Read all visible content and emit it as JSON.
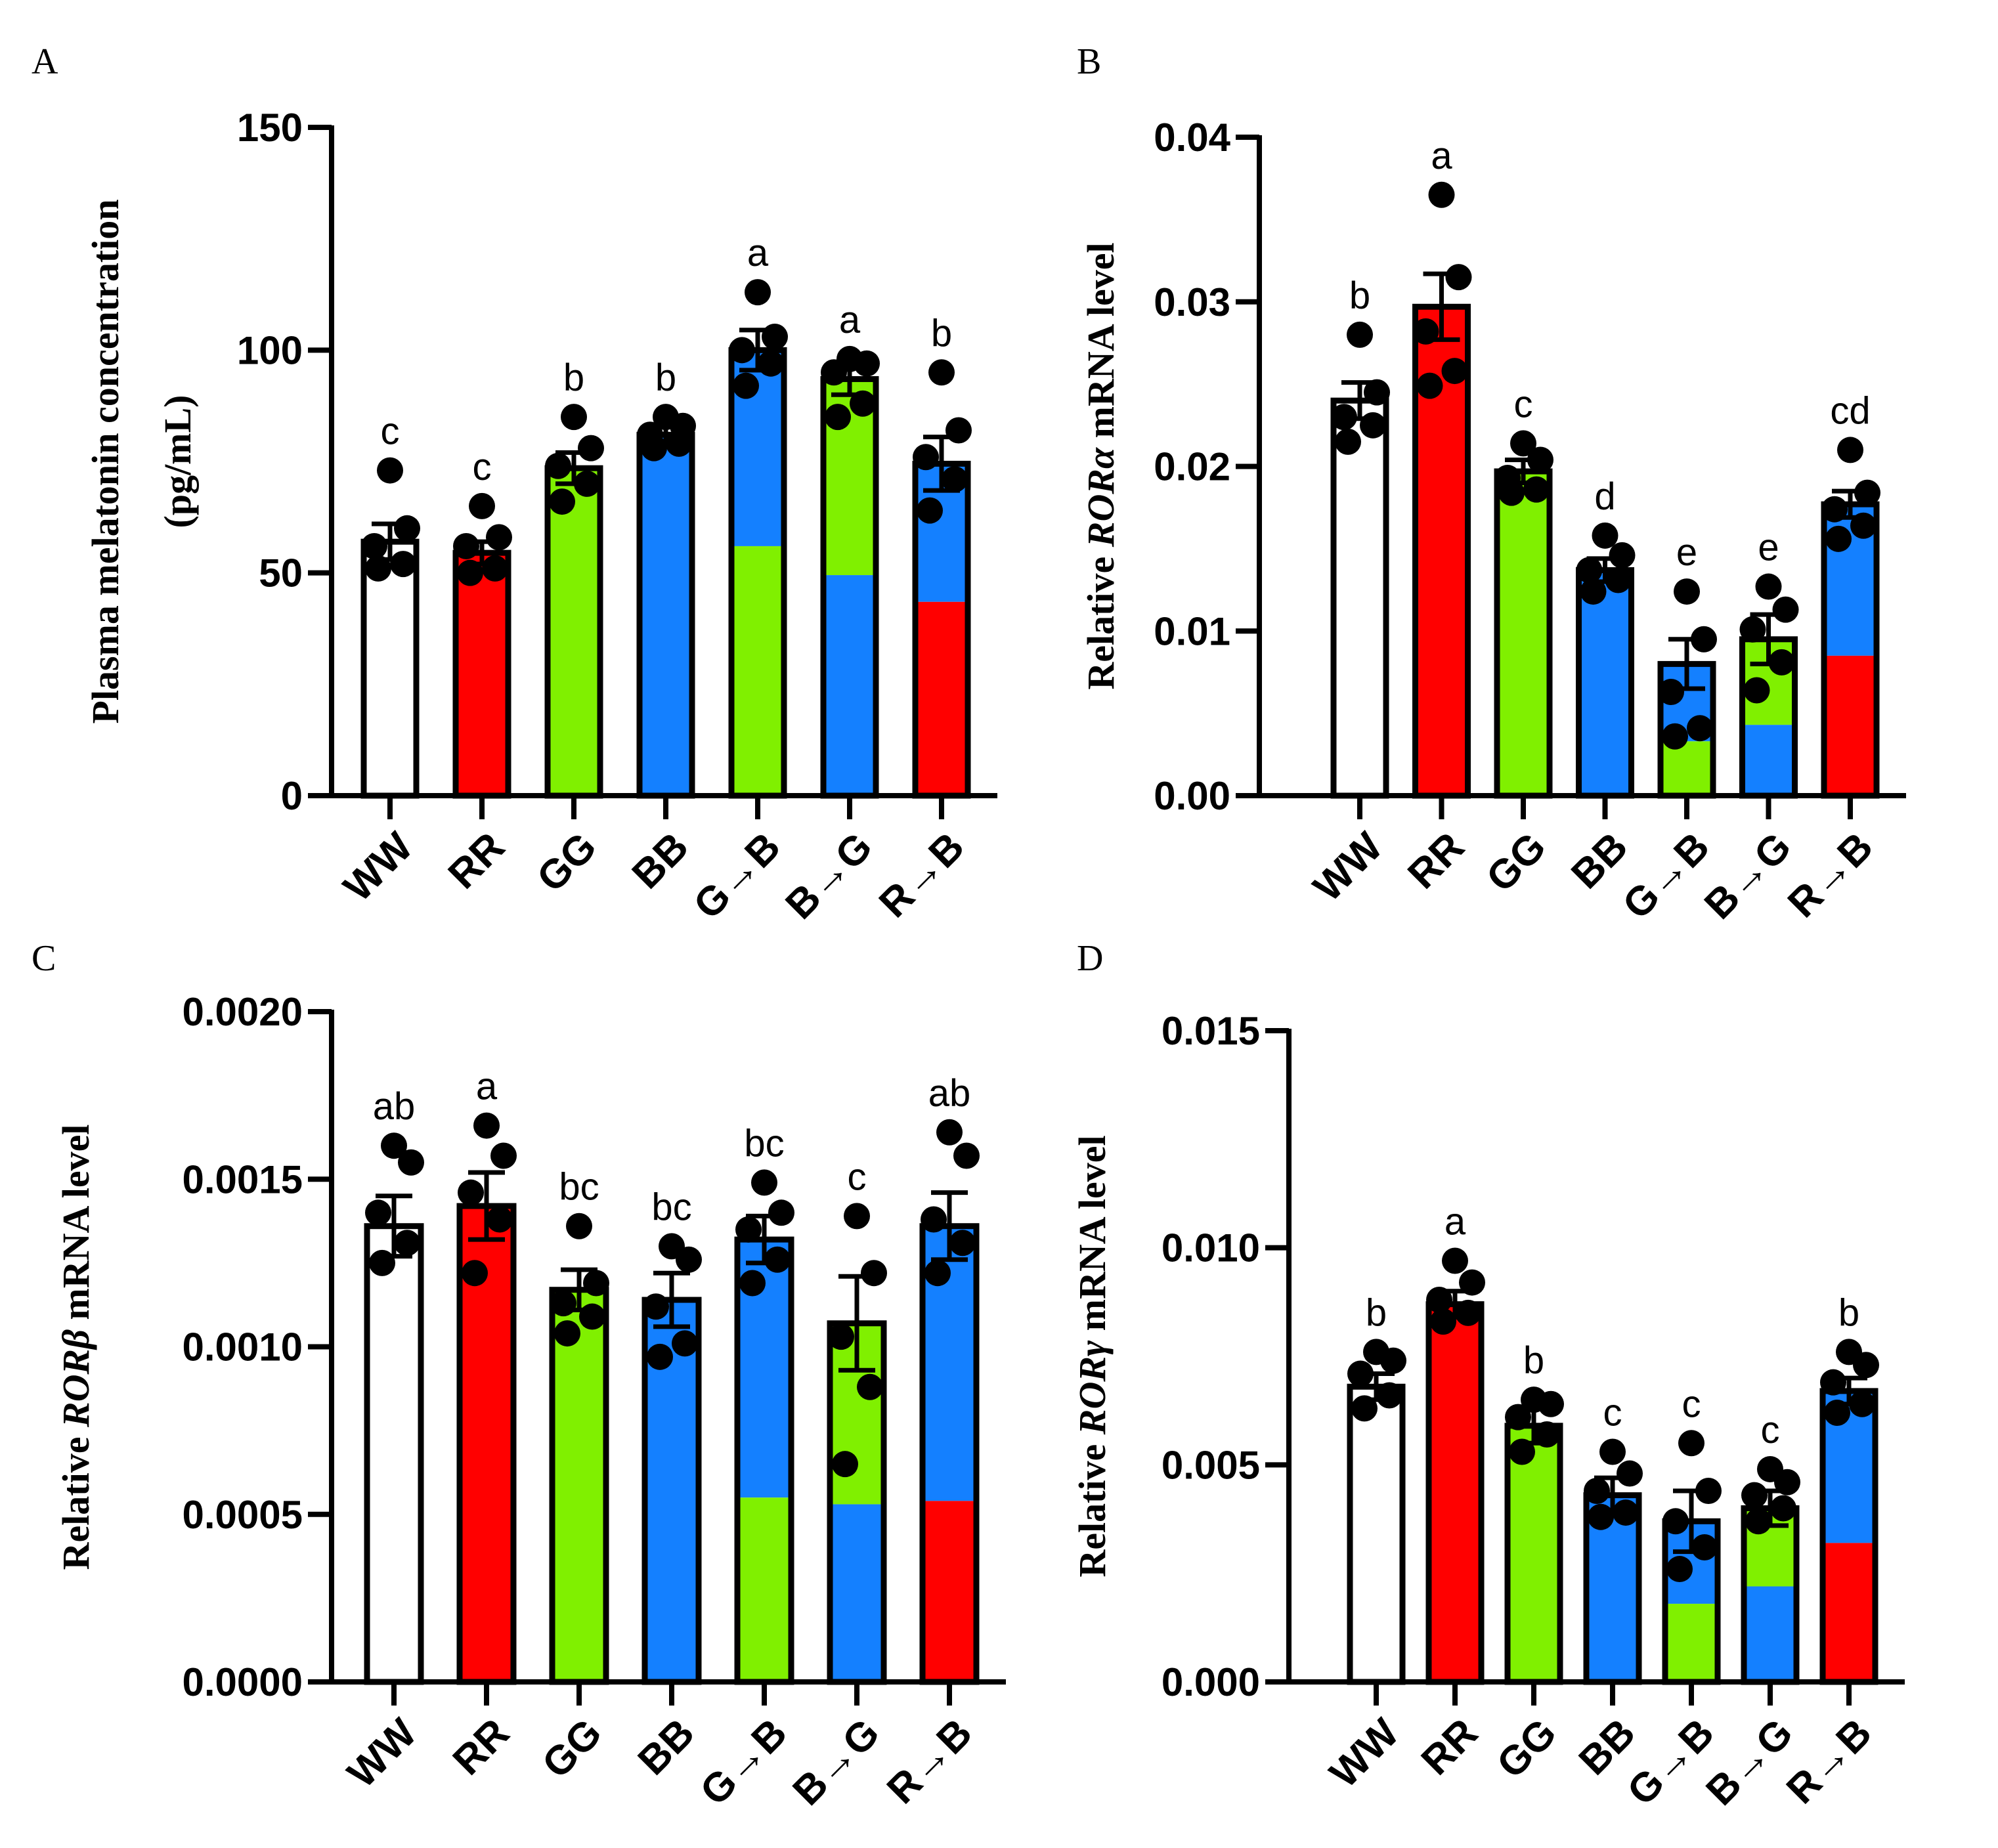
{
  "colors": {
    "W": "#ffffff",
    "R": "#ff0000",
    "G": "#80f000",
    "B": "#1480ff",
    "ink": "#000000"
  },
  "chart_data": [
    {
      "panel": "A",
      "type": "bar",
      "ylabel": "Plasma melatonin concentration",
      "ylabel_line2": "(pg/mL)",
      "categories": [
        "WW",
        "RR",
        "GG",
        "BB",
        "G→B",
        "B→G",
        "R→B"
      ],
      "ylim": [
        0,
        150
      ],
      "yticks": [
        "0",
        "50",
        "100",
        "150"
      ],
      "ytick_values": [
        0,
        50,
        100,
        150
      ],
      "values": [
        57,
        54.5,
        73.5,
        81,
        100,
        93.5,
        74.5
      ],
      "errors": [
        4,
        2.5,
        3.5,
        2,
        4.5,
        3.5,
        6
      ],
      "bottom_colors": [
        "W",
        "R",
        "G",
        "B",
        "G",
        "B",
        "R"
      ],
      "top_colors": [
        "W",
        "R",
        "G",
        "B",
        "B",
        "G",
        "B"
      ],
      "split_values": [
        null,
        null,
        null,
        null,
        56,
        49.5,
        43.5
      ],
      "significance": [
        "c",
        "c",
        "b",
        "b",
        "a",
        "a",
        "b"
      ],
      "points": [
        [
          73,
          60,
          56,
          52,
          51
        ],
        [
          65,
          58,
          56,
          51,
          50
        ],
        [
          85,
          78,
          74,
          70,
          66
        ],
        [
          85,
          83,
          81,
          79,
          78
        ],
        [
          113,
          103,
          100,
          97,
          92
        ],
        [
          98,
          97,
          95,
          88,
          85
        ],
        [
          95,
          82,
          76,
          71,
          64
        ]
      ]
    },
    {
      "panel": "B",
      "type": "bar",
      "ylabel_prefix": "Relative ",
      "ylabel_gene": "RORα",
      "ylabel_suffix": " mRNA level",
      "categories": [
        "WW",
        "RR",
        "GG",
        "BB",
        "G→B",
        "B→G",
        "R→B"
      ],
      "ylim": [
        0,
        0.04
      ],
      "yticks": [
        "0.00",
        "0.01",
        "0.02",
        "0.03",
        "0.04"
      ],
      "ytick_values": [
        0,
        0.01,
        0.02,
        0.03,
        0.04
      ],
      "values": [
        0.024,
        0.0297,
        0.0197,
        0.0137,
        0.008,
        0.0095,
        0.0177
      ],
      "errors": [
        0.0011,
        0.002,
        0.0007,
        0.0007,
        0.0015,
        0.0015,
        0.0008
      ],
      "bottom_colors": [
        "W",
        "R",
        "G",
        "B",
        "G",
        "B",
        "R"
      ],
      "top_colors": [
        "W",
        "R",
        "G",
        "B",
        "B",
        "G",
        "B"
      ],
      "split_values": [
        null,
        null,
        null,
        null,
        0.0033,
        0.0043,
        0.0085
      ],
      "significance": [
        "b",
        "a",
        "c",
        "d",
        "e",
        "e",
        "cd"
      ],
      "points": [
        [
          0.028,
          0.0245,
          0.023,
          0.0225,
          0.0215
        ],
        [
          0.0365,
          0.0315,
          0.0282,
          0.0258,
          0.0249
        ],
        [
          0.0214,
          0.0204,
          0.0193,
          0.0186,
          0.0184
        ],
        [
          0.0158,
          0.0146,
          0.0137,
          0.0131,
          0.0124
        ],
        [
          0.0124,
          0.0095,
          0.0063,
          0.0041,
          0.0036
        ],
        [
          0.0127,
          0.0113,
          0.0101,
          0.0081,
          0.0064
        ],
        [
          0.021,
          0.0184,
          0.0174,
          0.0164,
          0.0156
        ]
      ]
    },
    {
      "panel": "C",
      "type": "bar",
      "ylabel_prefix": "Relative ",
      "ylabel_gene": "RORβ",
      "ylabel_suffix": " mRNA level",
      "categories": [
        "WW",
        "RR",
        "GG",
        "BB",
        "G→B",
        "B→G",
        "R→B"
      ],
      "ylim": [
        0,
        0.002
      ],
      "yticks": [
        "0.0000",
        "0.0005",
        "0.0010",
        "0.0015",
        "0.0020"
      ],
      "ytick_values": [
        0,
        0.0005,
        0.001,
        0.0015,
        0.002
      ],
      "values": [
        0.00136,
        0.00142,
        0.00117,
        0.00114,
        0.00132,
        0.00107,
        0.00136
      ],
      "errors": [
        9e-05,
        0.0001,
        6e-05,
        8e-05,
        7e-05,
        0.00014,
        0.0001
      ],
      "bottom_colors": [
        "W",
        "R",
        "G",
        "B",
        "G",
        "B",
        "R"
      ],
      "top_colors": [
        "W",
        "R",
        "G",
        "B",
        "B",
        "G",
        "B"
      ],
      "split_values": [
        null,
        null,
        null,
        null,
        0.00055,
        0.00053,
        0.00054
      ],
      "significance": [
        "ab",
        "a",
        "bc",
        "bc",
        "bc",
        "c",
        "ab"
      ],
      "points": [
        [
          0.0016,
          0.00155,
          0.0014,
          0.00131,
          0.00125
        ],
        [
          0.00166,
          0.00157,
          0.00146,
          0.00138,
          0.00122
        ],
        [
          0.00136,
          0.00119,
          0.00113,
          0.00109,
          0.00104
        ],
        [
          0.0013,
          0.00126,
          0.00112,
          0.00101,
          0.00097
        ],
        [
          0.00149,
          0.0014,
          0.00135,
          0.00126,
          0.00119
        ],
        [
          0.00139,
          0.00122,
          0.00103,
          0.00088,
          0.00065
        ],
        [
          0.00164,
          0.00157,
          0.00138,
          0.00131,
          0.00122
        ]
      ]
    },
    {
      "panel": "D",
      "type": "bar",
      "ylabel_prefix": "Relative ",
      "ylabel_gene": "RORγ",
      "ylabel_suffix": " mRNA level",
      "categories": [
        "WW",
        "RR",
        "GG",
        "BB",
        "G→B",
        "B→G",
        "R→B"
      ],
      "ylim": [
        0,
        0.015
      ],
      "yticks": [
        "0.000",
        "0.005",
        "0.010",
        "0.015"
      ],
      "ytick_values": [
        0,
        0.005,
        0.01,
        0.015
      ],
      "values": [
        0.0068,
        0.0087,
        0.0059,
        0.0043,
        0.0037,
        0.004,
        0.0067
      ],
      "errors": [
        0.0003,
        0.0003,
        0.0004,
        0.0004,
        0.0007,
        0.0004,
        0.0003
      ],
      "bottom_colors": [
        "W",
        "R",
        "G",
        "B",
        "G",
        "B",
        "R"
      ],
      "top_colors": [
        "W",
        "R",
        "G",
        "B",
        "B",
        "G",
        "B"
      ],
      "split_values": [
        null,
        null,
        null,
        null,
        0.0018,
        0.0022,
        0.0032
      ],
      "significance": [
        "b",
        "a",
        "b",
        "c",
        "c",
        "c",
        "b"
      ],
      "points": [
        [
          0.0076,
          0.0074,
          0.0071,
          0.0066,
          0.0063
        ],
        [
          0.0097,
          0.0092,
          0.0088,
          0.0085,
          0.0083
        ],
        [
          0.0065,
          0.0064,
          0.0061,
          0.0057,
          0.0053
        ],
        [
          0.0053,
          0.0048,
          0.0044,
          0.0039,
          0.0038
        ],
        [
          0.0055,
          0.0044,
          0.0037,
          0.0031,
          0.0026
        ],
        [
          0.0049,
          0.0046,
          0.0043,
          0.004,
          0.0037
        ],
        [
          0.0076,
          0.0073,
          0.0069,
          0.0064,
          0.0062
        ]
      ]
    }
  ]
}
